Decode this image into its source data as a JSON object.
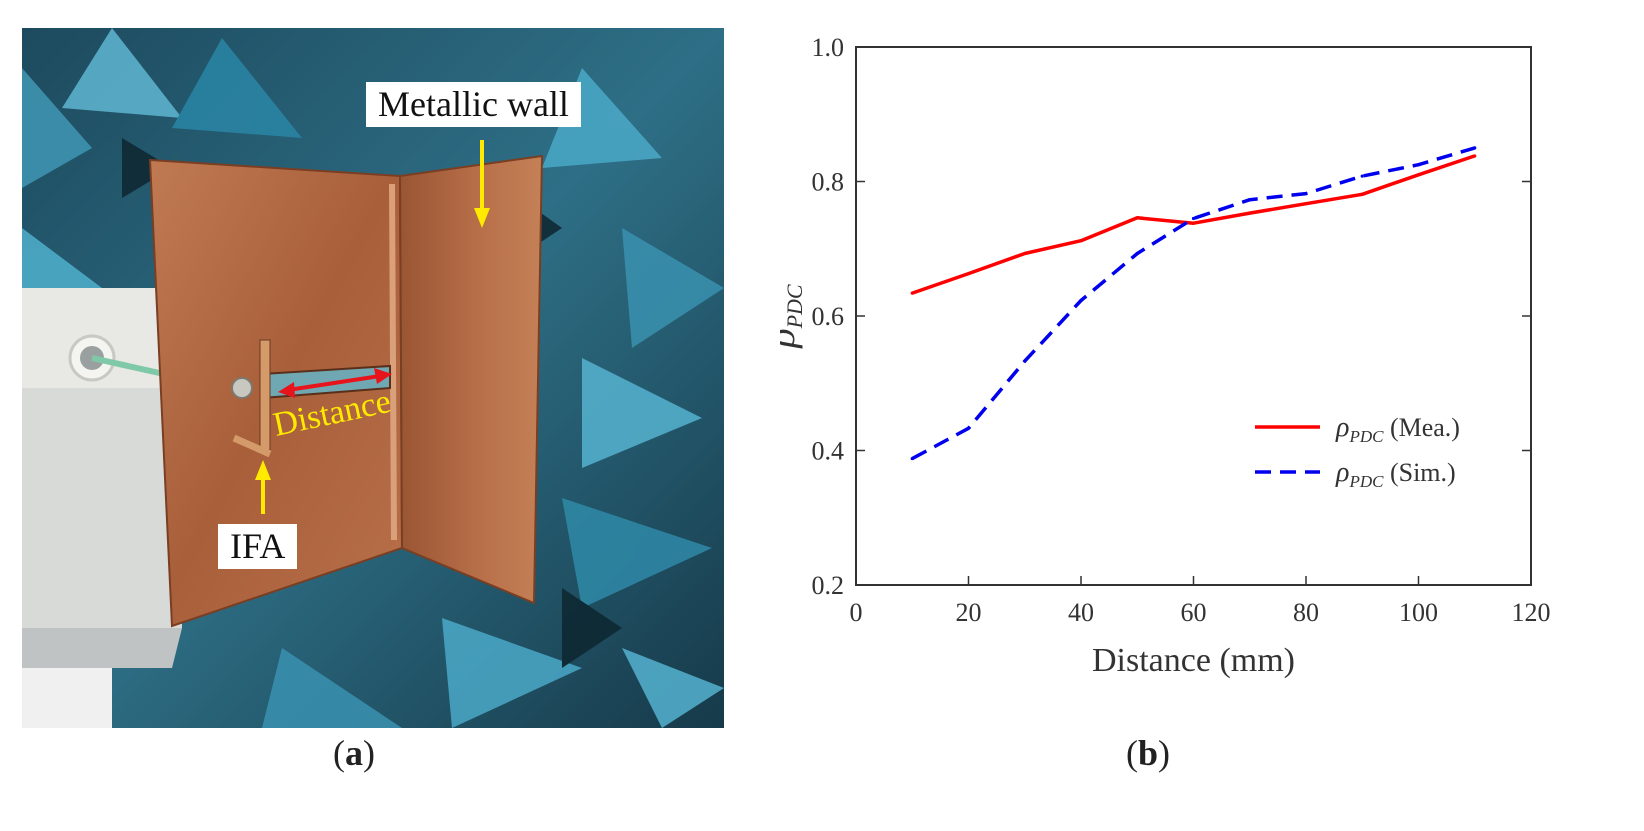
{
  "panels": {
    "a": {
      "caption_open": "(",
      "caption_letter": "a",
      "caption_close": ")"
    },
    "b": {
      "caption_open": "(",
      "caption_letter": "b",
      "caption_close": ")"
    }
  },
  "photo": {
    "labels": {
      "metallic_wall": "Metallic wall",
      "distance": "Distance",
      "ifa": "IFA"
    },
    "colors": {
      "copper": "#b5673e",
      "absorber": "#2e6f86",
      "arrow_yellow": "#ffea00",
      "arrow_red": "#e8141c"
    }
  },
  "chart_data": {
    "type": "line",
    "xlabel": "Distance (mm)",
    "ylabel_symbol": "ρ",
    "ylabel_subscript": "PDC",
    "xlim": [
      0,
      120
    ],
    "ylim": [
      0.2,
      1.0
    ],
    "xticks": [
      0,
      20,
      40,
      60,
      80,
      100,
      120
    ],
    "yticks": [
      "0.2",
      "0.4",
      "0.6",
      "0.8",
      "1.0"
    ],
    "grid": false,
    "legend_position": "lower-right",
    "series": [
      {
        "name": "ρPDC (Mea.)",
        "legend_symbol": "ρ",
        "legend_subscript": "PDC",
        "legend_suffix": " (Mea.)",
        "color": "#ff0000",
        "style": "solid",
        "x": [
          10,
          20,
          30,
          40,
          50,
          60,
          70,
          80,
          90,
          100,
          110
        ],
        "y": [
          0.634,
          0.663,
          0.693,
          0.712,
          0.746,
          0.738,
          0.753,
          0.767,
          0.781,
          0.81,
          0.838
        ]
      },
      {
        "name": "ρPDC (Sim.)",
        "legend_symbol": "ρ",
        "legend_subscript": "PDC",
        "legend_suffix": " (Sim.)",
        "color": "#0000ee",
        "style": "dashed",
        "x": [
          10,
          20,
          30,
          40,
          50,
          60,
          70,
          80,
          90,
          100,
          110
        ],
        "y": [
          0.388,
          0.433,
          0.533,
          0.623,
          0.693,
          0.745,
          0.773,
          0.782,
          0.808,
          0.825,
          0.85
        ]
      }
    ]
  }
}
